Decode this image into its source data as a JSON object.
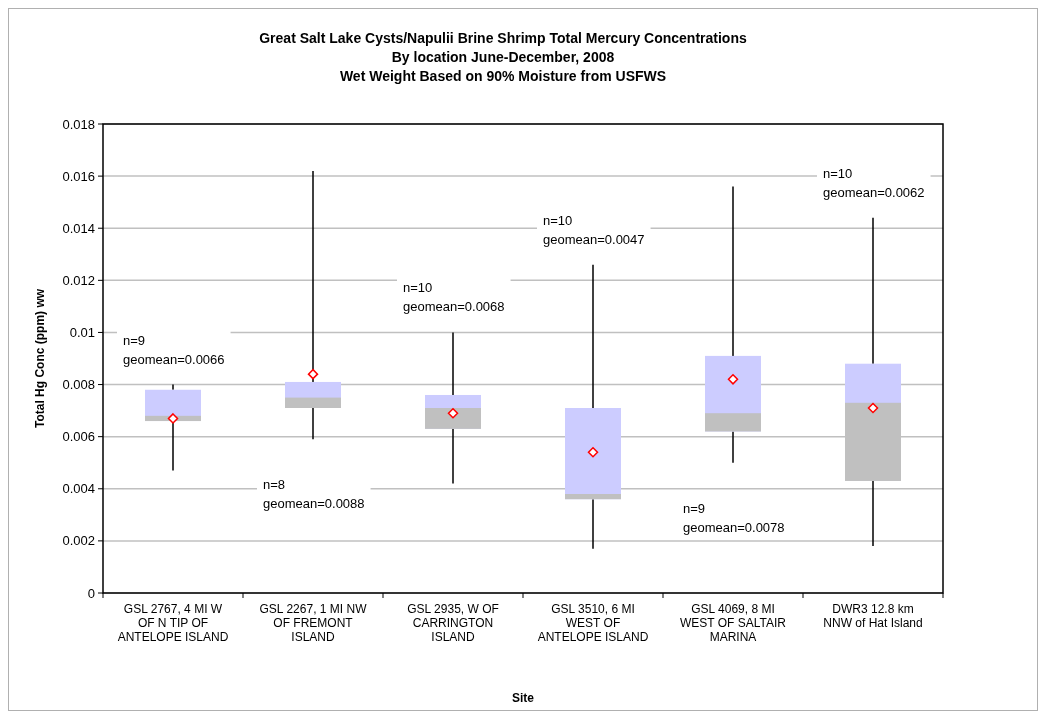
{
  "chart_data": {
    "type": "box",
    "title": "Great Salt Lake Cysts/Napulii Brine Shrimp Total Mercury Concentrations\nBy location June-December, 2008\nWet Weight Based on 90% Moisture from USFWS",
    "xlabel": "Site",
    "ylabel": "Total Hg Conc (ppm) ww",
    "categories": [
      "GSL 2767, 4 MI W OF N TIP OF ANTELOPE ISLAND",
      "GSL 2267, 1 MI NW OF FREMONT ISLAND",
      "GSL 2935, W OF CARRINGTON ISLAND",
      "GSL 3510, 6 MI WEST OF ANTELOPE ISLAND",
      "GSL 4069, 8 MI WEST OF SALTAIR MARINA",
      "DWR3 12.8 km NNW of Hat Island"
    ],
    "series": [
      {
        "color": "#ccccff",
        "boxes": [
          {
            "low": 0.0047,
            "q1": 0.0066,
            "median": 0.0068,
            "q3": 0.0078,
            "high": 0.008,
            "mean": 0.0067
          },
          {
            "low": 0.0059,
            "q1": 0.0071,
            "median": 0.0075,
            "q3": 0.0081,
            "high": 0.0162,
            "mean": 0.0084
          },
          {
            "low": 0.0042,
            "q1": 0.0063,
            "median": 0.0071,
            "q3": 0.0076,
            "high": 0.01,
            "mean": 0.0069
          },
          {
            "low": 0.0017,
            "q1": 0.0036,
            "median": 0.0038,
            "q3": 0.0071,
            "high": 0.0126,
            "mean": 0.0054
          },
          {
            "low": 0.005,
            "q1": 0.0062,
            "median": 0.0069,
            "q3": 0.0091,
            "high": 0.0156,
            "mean": 0.0082
          },
          {
            "low": 0.0018,
            "q1": 0.0043,
            "median": 0.0073,
            "q3": 0.0088,
            "high": 0.0144,
            "mean": 0.0071
          }
        ]
      }
    ],
    "ylim": [
      0,
      0.018
    ],
    "yticks": [
      0,
      0.002,
      0.004,
      0.006,
      0.008,
      0.01,
      0.012,
      0.014,
      0.016,
      0.018
    ],
    "grid": "y",
    "marker": "diamond",
    "annotations": [
      "n=9\ngeomean=0.0066",
      "n=8\ngeomean=0.0088",
      "n=10\ngeomean=0.0068",
      "n=10\ngeomean=0.0047",
      "n=9\ngeomean=0.0078",
      "n=10\ngeomean=0.0062"
    ]
  }
}
